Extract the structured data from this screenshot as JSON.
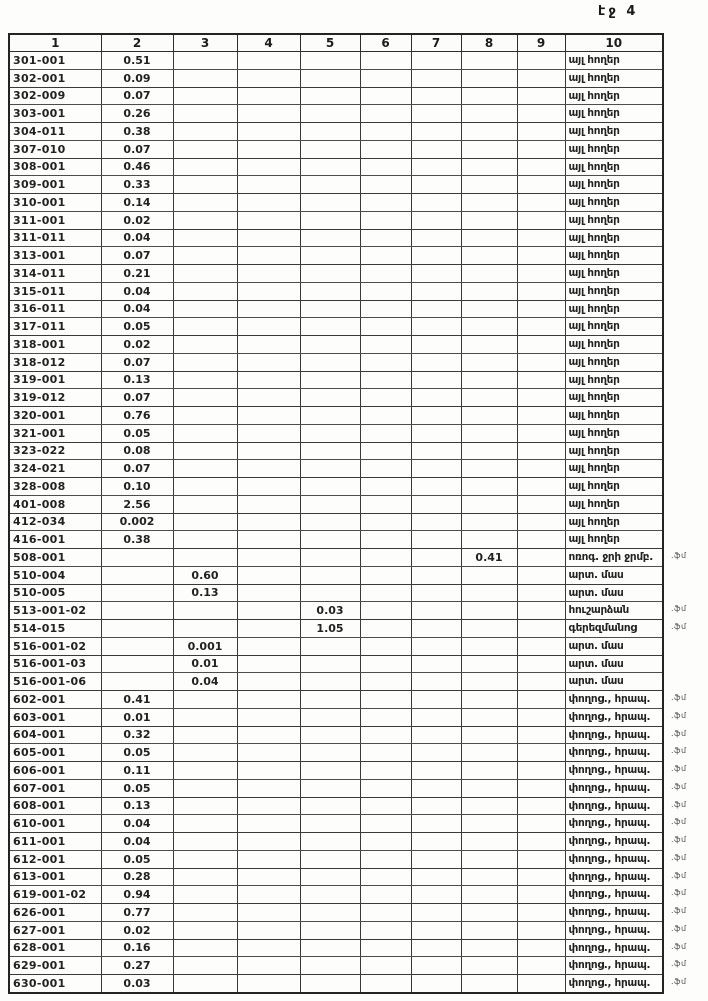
{
  "page": {
    "label": "էջ 4"
  },
  "table": {
    "headers": [
      "1",
      "2",
      "3",
      "4",
      "5",
      "6",
      "7",
      "8",
      "9",
      "10"
    ],
    "land_types": {
      "other_lands": "այլ հողեր",
      "irrigation_reservoir": "ոռոգ. ջրի ջրմբ.",
      "pasture_part": "արտ. մաս",
      "monument": "հուշարձան",
      "cemetery": "գերեզմանոց",
      "street_public": "փողոց., հրապ."
    },
    "rows": [
      {
        "cells": [
          "301-001",
          "0.51",
          "",
          "",
          "",
          "",
          "",
          "",
          "",
          "այլ հողեր"
        ],
        "note": ""
      },
      {
        "cells": [
          "302-001",
          "0.09",
          "",
          "",
          "",
          "",
          "",
          "",
          "",
          "այլ հողեր"
        ],
        "note": ""
      },
      {
        "cells": [
          "302-009",
          "0.07",
          "",
          "",
          "",
          "",
          "",
          "",
          "",
          "այլ հողեր"
        ],
        "note": ""
      },
      {
        "cells": [
          "303-001",
          "0.26",
          "",
          "",
          "",
          "",
          "",
          "",
          "",
          "այլ հողեր"
        ],
        "note": ""
      },
      {
        "cells": [
          "304-011",
          "0.38",
          "",
          "",
          "",
          "",
          "",
          "",
          "",
          "այլ հողեր"
        ],
        "note": ""
      },
      {
        "cells": [
          "307-010",
          "0.07",
          "",
          "",
          "",
          "",
          "",
          "",
          "",
          "այլ հողեր"
        ],
        "note": ""
      },
      {
        "cells": [
          "308-001",
          "0.46",
          "",
          "",
          "",
          "",
          "",
          "",
          "",
          "այլ հողեր"
        ],
        "note": ""
      },
      {
        "cells": [
          "309-001",
          "0.33",
          "",
          "",
          "",
          "",
          "",
          "",
          "",
          "այլ հողեր"
        ],
        "note": ""
      },
      {
        "cells": [
          "310-001",
          "0.14",
          "",
          "",
          "",
          "",
          "",
          "",
          "",
          "այլ հողեր"
        ],
        "note": ""
      },
      {
        "cells": [
          "311-001",
          "0.02",
          "",
          "",
          "",
          "",
          "",
          "",
          "",
          "այլ հողեր"
        ],
        "note": ""
      },
      {
        "cells": [
          "311-011",
          "0.04",
          "",
          "",
          "",
          "",
          "",
          "",
          "",
          "այլ հողեր"
        ],
        "note": ""
      },
      {
        "cells": [
          "313-001",
          "0.07",
          "",
          "",
          "",
          "",
          "",
          "",
          "",
          "այլ հողեր"
        ],
        "note": ""
      },
      {
        "cells": [
          "314-011",
          "0.21",
          "",
          "",
          "",
          "",
          "",
          "",
          "",
          "այլ հողեր"
        ],
        "note": ""
      },
      {
        "cells": [
          "315-011",
          "0.04",
          "",
          "",
          "",
          "",
          "",
          "",
          "",
          "այլ հողեր"
        ],
        "note": ""
      },
      {
        "cells": [
          "316-011",
          "0.04",
          "",
          "",
          "",
          "",
          "",
          "",
          "",
          "այլ հողեր"
        ],
        "note": ""
      },
      {
        "cells": [
          "317-011",
          "0.05",
          "",
          "",
          "",
          "",
          "",
          "",
          "",
          "այլ հողեր"
        ],
        "note": ""
      },
      {
        "cells": [
          "318-001",
          "0.02",
          "",
          "",
          "",
          "",
          "",
          "",
          "",
          "այլ հողեր"
        ],
        "note": ""
      },
      {
        "cells": [
          "318-012",
          "0.07",
          "",
          "",
          "",
          "",
          "",
          "",
          "",
          "այլ հողեր"
        ],
        "note": ""
      },
      {
        "cells": [
          "319-001",
          "0.13",
          "",
          "",
          "",
          "",
          "",
          "",
          "",
          "այլ հողեր"
        ],
        "note": ""
      },
      {
        "cells": [
          "319-012",
          "0.07",
          "",
          "",
          "",
          "",
          "",
          "",
          "",
          "այլ հողեր"
        ],
        "note": ""
      },
      {
        "cells": [
          "320-001",
          "0.76",
          "",
          "",
          "",
          "",
          "",
          "",
          "",
          "այլ հողեր"
        ],
        "note": ""
      },
      {
        "cells": [
          "321-001",
          "0.05",
          "",
          "",
          "",
          "",
          "",
          "",
          "",
          "այլ հողեր"
        ],
        "note": ""
      },
      {
        "cells": [
          "323-022",
          "0.08",
          "",
          "",
          "",
          "",
          "",
          "",
          "",
          "այլ հողեր"
        ],
        "note": ""
      },
      {
        "cells": [
          "324-021",
          "0.07",
          "",
          "",
          "",
          "",
          "",
          "",
          "",
          "այլ հողեր"
        ],
        "note": ""
      },
      {
        "cells": [
          "328-008",
          "0.10",
          "",
          "",
          "",
          "",
          "",
          "",
          "",
          "այլ հողեր"
        ],
        "note": ""
      },
      {
        "cells": [
          "401-008",
          "2.56",
          "",
          "",
          "",
          "",
          "",
          "",
          "",
          "այլ հողեր"
        ],
        "note": ""
      },
      {
        "cells": [
          "412-034",
          "0.002",
          "",
          "",
          "",
          "",
          "",
          "",
          "",
          "այլ հողեր"
        ],
        "note": ""
      },
      {
        "cells": [
          "416-001",
          "0.38",
          "",
          "",
          "",
          "",
          "",
          "",
          "",
          "այլ հողեր"
        ],
        "note": ""
      },
      {
        "cells": [
          "508-001",
          "",
          "",
          "",
          "",
          "",
          "",
          "0.41",
          "",
          "ոռոգ. ջրի ջրմբ."
        ],
        "note": ".ֆմ"
      },
      {
        "cells": [
          "510-004",
          "",
          "0.60",
          "",
          "",
          "",
          "",
          "",
          "",
          "արտ. մաս"
        ],
        "note": ""
      },
      {
        "cells": [
          "510-005",
          "",
          "0.13",
          "",
          "",
          "",
          "",
          "",
          "",
          "արտ. մաս"
        ],
        "note": ""
      },
      {
        "cells": [
          "513-001-02",
          "",
          "",
          "",
          "0.03",
          "",
          "",
          "",
          "",
          "հուշարձան"
        ],
        "note": ".ֆմ"
      },
      {
        "cells": [
          "514-015",
          "",
          "",
          "",
          "1.05",
          "",
          "",
          "",
          "",
          "գերեզմանոց"
        ],
        "note": ".ֆմ"
      },
      {
        "cells": [
          "516-001-02",
          "",
          "0.001",
          "",
          "",
          "",
          "",
          "",
          "",
          "արտ. մաս"
        ],
        "note": ""
      },
      {
        "cells": [
          "516-001-03",
          "",
          "0.01",
          "",
          "",
          "",
          "",
          "",
          "",
          "արտ. մաս"
        ],
        "note": ""
      },
      {
        "cells": [
          "516-001-06",
          "",
          "0.04",
          "",
          "",
          "",
          "",
          "",
          "",
          "արտ. մաս"
        ],
        "note": ""
      },
      {
        "cells": [
          "602-001",
          "0.41",
          "",
          "",
          "",
          "",
          "",
          "",
          "",
          "փողոց., հրապ."
        ],
        "note": ".ֆմ"
      },
      {
        "cells": [
          "603-001",
          "0.01",
          "",
          "",
          "",
          "",
          "",
          "",
          "",
          "փողոց., հրապ."
        ],
        "note": ".ֆմ"
      },
      {
        "cells": [
          "604-001",
          "0.32",
          "",
          "",
          "",
          "",
          "",
          "",
          "",
          "փողոց., հրապ."
        ],
        "note": ".ֆմ"
      },
      {
        "cells": [
          "605-001",
          "0.05",
          "",
          "",
          "",
          "",
          "",
          "",
          "",
          "փողոց., հրապ."
        ],
        "note": ".ֆմ"
      },
      {
        "cells": [
          "606-001",
          "0.11",
          "",
          "",
          "",
          "",
          "",
          "",
          "",
          "փողոց., հրապ."
        ],
        "note": ".ֆմ"
      },
      {
        "cells": [
          "607-001",
          "0.05",
          "",
          "",
          "",
          "",
          "",
          "",
          "",
          "փողոց., հրապ."
        ],
        "note": ".ֆմ"
      },
      {
        "cells": [
          "608-001",
          "0.13",
          "",
          "",
          "",
          "",
          "",
          "",
          "",
          "փողոց., հրապ."
        ],
        "note": ".ֆմ"
      },
      {
        "cells": [
          "610-001",
          "0.04",
          "",
          "",
          "",
          "",
          "",
          "",
          "",
          "փողոց., հրապ."
        ],
        "note": ".ֆմ"
      },
      {
        "cells": [
          "611-001",
          "0.04",
          "",
          "",
          "",
          "",
          "",
          "",
          "",
          "փողոց., հրապ."
        ],
        "note": ".ֆմ"
      },
      {
        "cells": [
          "612-001",
          "0.05",
          "",
          "",
          "",
          "",
          "",
          "",
          "",
          "փողոց., հրապ."
        ],
        "note": ".ֆմ"
      },
      {
        "cells": [
          "613-001",
          "0.28",
          "",
          "",
          "",
          "",
          "",
          "",
          "",
          "փողոց., հրապ."
        ],
        "note": ".ֆմ"
      },
      {
        "cells": [
          "619-001-02",
          "0.94",
          "",
          "",
          "",
          "",
          "",
          "",
          "",
          "փողոց., հրապ."
        ],
        "note": ".ֆմ"
      },
      {
        "cells": [
          "626-001",
          "0.77",
          "",
          "",
          "",
          "",
          "",
          "",
          "",
          "փողոց., հրապ."
        ],
        "note": ".ֆմ"
      },
      {
        "cells": [
          "627-001",
          "0.02",
          "",
          "",
          "",
          "",
          "",
          "",
          "",
          "փողոց., հրապ."
        ],
        "note": ".ֆմ"
      },
      {
        "cells": [
          "628-001",
          "0.16",
          "",
          "",
          "",
          "",
          "",
          "",
          "",
          "փողոց., հրապ."
        ],
        "note": ".ֆմ"
      },
      {
        "cells": [
          "629-001",
          "0.27",
          "",
          "",
          "",
          "",
          "",
          "",
          "",
          "փողոց., հրապ."
        ],
        "note": ".ֆմ"
      },
      {
        "cells": [
          "630-001",
          "0.03",
          "",
          "",
          "",
          "",
          "",
          "",
          "",
          "փողոց., հրապ."
        ],
        "note": ".ֆմ"
      }
    ]
  }
}
